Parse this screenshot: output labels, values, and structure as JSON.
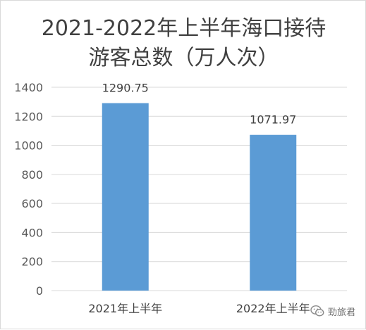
{
  "chart_data": {
    "type": "bar",
    "title_lines": [
      "2021-2022年上半年海口接待",
      "游客总数（万人次）"
    ],
    "categories": [
      "2021年上半年",
      "2022年上半年"
    ],
    "values": [
      1290.75,
      1071.97
    ],
    "data_labels": [
      "1290.75",
      "1071.97"
    ],
    "y_ticks": [
      "0",
      "200",
      "400",
      "600",
      "800",
      "1000",
      "1200",
      "1400"
    ],
    "ylim": [
      0,
      1400
    ],
    "grid": true,
    "legend": "none",
    "bar_color": "#5b9bd5",
    "grid_color": "#d9d9d9"
  },
  "watermark": {
    "text": "勁旅君",
    "icon": "wechat-icon"
  }
}
